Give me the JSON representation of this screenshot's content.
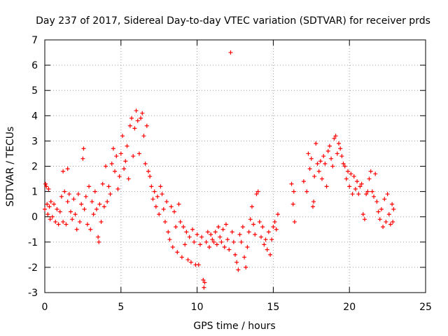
{
  "chart_data": {
    "type": "scatter",
    "title": "Day 237 of 2017, Sidereal Day-to-day VTEC variation (SDTVAR) for receiver prds",
    "xlabel": "GPS time / hours",
    "ylabel": "SDTVAR / TECUs",
    "xlim": [
      0,
      25
    ],
    "ylim": [
      -3,
      7
    ],
    "grid": true,
    "marker": "+",
    "color": "#ff0000",
    "xticks": [
      "0",
      "5",
      "10",
      "15",
      "20",
      "25"
    ],
    "yticks": [
      "-3",
      "-2",
      "-1",
      "0",
      "1",
      "2",
      "3",
      "4",
      "5",
      "6",
      "7"
    ],
    "series": [
      {
        "name": "SDTVAR",
        "points": [
          [
            0.0,
            0.3
          ],
          [
            0.05,
            1.3
          ],
          [
            0.1,
            1.2
          ],
          [
            0.15,
            0.5
          ],
          [
            0.2,
            0.1
          ],
          [
            0.25,
            1.1
          ],
          [
            0.3,
            0.4
          ],
          [
            0.35,
            -0.1
          ],
          [
            0.4,
            0.6
          ],
          [
            0.5,
            0.0
          ],
          [
            0.6,
            0.5
          ],
          [
            0.7,
            -0.2
          ],
          [
            0.8,
            0.3
          ],
          [
            0.9,
            -0.3
          ],
          [
            1.0,
            0.2
          ],
          [
            1.1,
            0.8
          ],
          [
            1.2,
            -0.2
          ],
          [
            1.3,
            1.0
          ],
          [
            1.4,
            -0.3
          ],
          [
            1.5,
            0.6
          ],
          [
            1.2,
            1.8
          ],
          [
            1.5,
            1.9
          ],
          [
            1.6,
            0.9
          ],
          [
            1.7,
            0.2
          ],
          [
            1.8,
            -0.1
          ],
          [
            1.9,
            0.7
          ],
          [
            2.0,
            0.1
          ],
          [
            2.1,
            -0.5
          ],
          [
            2.2,
            0.9
          ],
          [
            2.3,
            -0.2
          ],
          [
            2.4,
            0.5
          ],
          [
            2.5,
            2.3
          ],
          [
            2.55,
            2.7
          ],
          [
            2.6,
            0.3
          ],
          [
            2.7,
            0.8
          ],
          [
            2.8,
            -0.3
          ],
          [
            2.9,
            1.2
          ],
          [
            3.0,
            -0.5
          ],
          [
            3.1,
            0.6
          ],
          [
            3.2,
            0.1
          ],
          [
            3.3,
            1.0
          ],
          [
            3.4,
            0.3
          ],
          [
            3.5,
            -0.8
          ],
          [
            3.55,
            -1.0
          ],
          [
            3.6,
            0.5
          ],
          [
            3.7,
            -0.2
          ],
          [
            3.8,
            1.3
          ],
          [
            3.9,
            0.4
          ],
          [
            4.0,
            2.0
          ],
          [
            4.1,
            0.6
          ],
          [
            4.2,
            1.2
          ],
          [
            4.3,
            0.9
          ],
          [
            4.4,
            2.1
          ],
          [
            4.5,
            2.7
          ],
          [
            4.6,
            1.8
          ],
          [
            4.7,
            2.4
          ],
          [
            4.8,
            1.1
          ],
          [
            4.9,
            1.6
          ],
          [
            5.0,
            2.5
          ],
          [
            5.1,
            3.2
          ],
          [
            5.2,
            1.9
          ],
          [
            5.3,
            2.2
          ],
          [
            5.4,
            2.8
          ],
          [
            5.5,
            1.5
          ],
          [
            5.6,
            3.6
          ],
          [
            5.7,
            3.9
          ],
          [
            5.8,
            2.4
          ],
          [
            5.9,
            3.5
          ],
          [
            6.0,
            4.2
          ],
          [
            6.1,
            3.8
          ],
          [
            6.2,
            2.5
          ],
          [
            6.3,
            3.9
          ],
          [
            6.4,
            4.1
          ],
          [
            6.5,
            3.2
          ],
          [
            6.6,
            2.1
          ],
          [
            6.7,
            3.6
          ],
          [
            6.8,
            1.8
          ],
          [
            6.9,
            1.6
          ],
          [
            7.0,
            1.2
          ],
          [
            7.1,
            0.7
          ],
          [
            7.2,
            1.0
          ],
          [
            7.3,
            0.4
          ],
          [
            7.4,
            0.8
          ],
          [
            7.5,
            0.1
          ],
          [
            7.6,
            1.2
          ],
          [
            7.7,
            0.9
          ],
          [
            7.8,
            0.3
          ],
          [
            7.9,
            -0.2
          ],
          [
            8.0,
            0.6
          ],
          [
            8.1,
            -0.6
          ],
          [
            8.2,
            -0.9
          ],
          [
            8.3,
            0.4
          ],
          [
            8.4,
            -1.2
          ],
          [
            8.5,
            0.2
          ],
          [
            8.6,
            -0.4
          ],
          [
            8.7,
            -1.4
          ],
          [
            8.8,
            0.5
          ],
          [
            8.9,
            -0.2
          ],
          [
            9.0,
            -1.6
          ],
          [
            9.1,
            -0.4
          ],
          [
            9.2,
            -1.1
          ],
          [
            9.3,
            -0.6
          ],
          [
            9.4,
            -1.7
          ],
          [
            9.5,
            -0.8
          ],
          [
            9.6,
            -1.8
          ],
          [
            9.7,
            -0.5
          ],
          [
            9.8,
            -1.0
          ],
          [
            9.9,
            -1.9
          ],
          [
            10.0,
            -0.7
          ],
          [
            10.1,
            -1.9
          ],
          [
            10.2,
            -1.1
          ],
          [
            10.3,
            -0.8
          ],
          [
            10.4,
            -2.5
          ],
          [
            10.45,
            -2.8
          ],
          [
            10.5,
            -2.6
          ],
          [
            10.6,
            -1.0
          ],
          [
            10.7,
            -0.6
          ],
          [
            10.8,
            -1.2
          ],
          [
            10.9,
            -0.7
          ],
          [
            11.0,
            -0.9
          ],
          [
            11.1,
            -1.0
          ],
          [
            11.2,
            -0.6
          ],
          [
            11.3,
            -1.1
          ],
          [
            11.4,
            -0.4
          ],
          [
            11.5,
            -0.8
          ],
          [
            11.6,
            -1.0
          ],
          [
            11.7,
            -0.5
          ],
          [
            11.8,
            -1.2
          ],
          [
            11.9,
            -0.3
          ],
          [
            12.0,
            -0.9
          ],
          [
            12.1,
            -1.3
          ],
          [
            12.2,
            6.5
          ],
          [
            12.3,
            -0.6
          ],
          [
            12.4,
            -1.0
          ],
          [
            12.5,
            -1.5
          ],
          [
            12.6,
            -1.8
          ],
          [
            12.7,
            -2.1
          ],
          [
            12.8,
            -0.7
          ],
          [
            12.9,
            -1.0
          ],
          [
            13.0,
            -0.4
          ],
          [
            13.1,
            -1.6
          ],
          [
            13.2,
            -2.0
          ],
          [
            13.3,
            -1.2
          ],
          [
            13.4,
            -0.6
          ],
          [
            13.5,
            -0.1
          ],
          [
            13.6,
            0.4
          ],
          [
            13.7,
            -0.3
          ],
          [
            13.8,
            -0.7
          ],
          [
            13.9,
            0.9
          ],
          [
            14.0,
            1.0
          ],
          [
            14.1,
            -0.2
          ],
          [
            14.2,
            -0.8
          ],
          [
            14.3,
            -0.4
          ],
          [
            14.4,
            -1.1
          ],
          [
            14.5,
            -0.9
          ],
          [
            14.6,
            -1.3
          ],
          [
            14.7,
            -0.6
          ],
          [
            14.8,
            -1.5
          ],
          [
            14.9,
            -0.9
          ],
          [
            15.0,
            -0.4
          ],
          [
            15.1,
            -0.2
          ],
          [
            15.2,
            -0.5
          ],
          [
            15.3,
            0.1
          ],
          [
            16.2,
            1.3
          ],
          [
            16.3,
            0.5
          ],
          [
            16.35,
            1.0
          ],
          [
            16.4,
            -0.2
          ],
          [
            17.0,
            1.4
          ],
          [
            17.2,
            1.0
          ],
          [
            17.3,
            2.5
          ],
          [
            17.4,
            1.9
          ],
          [
            17.5,
            2.3
          ],
          [
            17.6,
            0.4
          ],
          [
            17.65,
            0.6
          ],
          [
            17.7,
            1.6
          ],
          [
            17.8,
            2.9
          ],
          [
            17.9,
            2.1
          ],
          [
            18.0,
            1.8
          ],
          [
            18.1,
            2.2
          ],
          [
            18.2,
            1.5
          ],
          [
            18.3,
            2.4
          ],
          [
            18.4,
            2.1
          ],
          [
            18.5,
            1.2
          ],
          [
            18.6,
            2.6
          ],
          [
            18.7,
            2.8
          ],
          [
            18.8,
            2.3
          ],
          [
            18.9,
            2.0
          ],
          [
            19.0,
            3.1
          ],
          [
            19.1,
            3.2
          ],
          [
            19.2,
            2.5
          ],
          [
            19.3,
            2.9
          ],
          [
            19.4,
            2.7
          ],
          [
            19.5,
            2.4
          ],
          [
            19.6,
            2.1
          ],
          [
            19.7,
            2.0
          ],
          [
            19.8,
            1.5
          ],
          [
            19.9,
            1.8
          ],
          [
            20.0,
            1.2
          ],
          [
            20.1,
            1.7
          ],
          [
            20.2,
            0.9
          ],
          [
            20.3,
            1.6
          ],
          [
            20.4,
            1.1
          ],
          [
            20.5,
            1.4
          ],
          [
            20.6,
            0.9
          ],
          [
            20.7,
            1.2
          ],
          [
            20.8,
            1.3
          ],
          [
            20.9,
            0.1
          ],
          [
            21.0,
            -0.1
          ],
          [
            21.1,
            0.9
          ],
          [
            21.2,
            1.0
          ],
          [
            21.3,
            1.5
          ],
          [
            21.4,
            1.8
          ],
          [
            21.5,
            1.0
          ],
          [
            21.6,
            0.8
          ],
          [
            21.7,
            1.7
          ],
          [
            21.8,
            0.6
          ],
          [
            21.9,
            0.2
          ],
          [
            22.0,
            -0.1
          ],
          [
            22.1,
            0.3
          ],
          [
            22.2,
            -0.4
          ],
          [
            22.3,
            0.7
          ],
          [
            22.4,
            -0.2
          ],
          [
            22.5,
            0.9
          ],
          [
            22.6,
            0.1
          ],
          [
            22.7,
            -0.3
          ],
          [
            22.8,
            0.5
          ],
          [
            22.85,
            -0.2
          ],
          [
            22.9,
            0.3
          ]
        ]
      }
    ]
  }
}
